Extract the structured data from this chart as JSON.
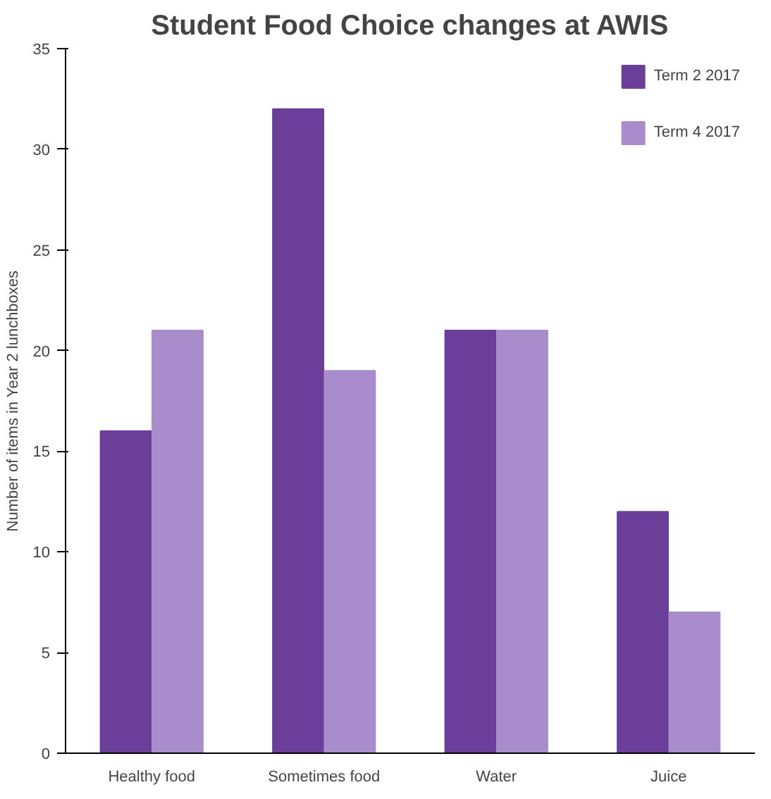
{
  "chart_data": {
    "type": "bar",
    "title": "Student Food Choice changes at AWIS",
    "ylabel": "Number of items in Year 2 lunchboxes",
    "categories": [
      "Healthy food",
      "Sometimes food",
      "Water",
      "Juice"
    ],
    "series": [
      {
        "name": "Term 2 2017",
        "color": "#6b3f99",
        "values": [
          16,
          32,
          21,
          12
        ]
      },
      {
        "name": "Term 4 2017",
        "color": "#a88ccb",
        "values": [
          21,
          19,
          21,
          7
        ]
      }
    ],
    "ylim": [
      0,
      35
    ],
    "yticks": [
      0,
      5,
      10,
      15,
      20,
      25,
      30,
      35
    ],
    "grid": false,
    "legend": "top right"
  }
}
